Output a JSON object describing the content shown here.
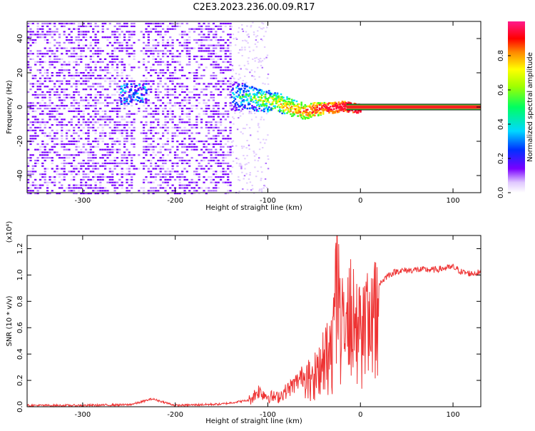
{
  "title": "C2E3.2023.236.00.09.R17",
  "chart_data": [
    {
      "type": "heatmap",
      "xlabel": "Height of straight line (km)",
      "ylabel": "Frequency (Hz)",
      "xlim": [
        -360,
        130
      ],
      "ylim": [
        -50,
        50
      ],
      "xticks": [
        -300,
        -200,
        -100,
        0,
        100
      ],
      "yticks": [
        -40,
        -20,
        0,
        20,
        40
      ],
      "colorbar": {
        "label": "Normalized spectral amplitude",
        "range": [
          0,
          1
        ],
        "ticks": [
          "0.0",
          "0.2",
          "0.4",
          "0.6",
          "0.8"
        ]
      },
      "signal_track": {
        "height_km": [
          -140,
          -120,
          -100,
          -90,
          -80,
          -70,
          -60,
          -50,
          -40,
          -30,
          -20,
          -10,
          0,
          130
        ],
        "frequency_hz": [
          7,
          6,
          4,
          3,
          1,
          -1,
          -2,
          -1,
          0,
          0,
          1,
          0,
          0,
          0
        ]
      }
    },
    {
      "type": "line",
      "xlabel": "Height of straight line (km)",
      "ylabel": "SNR (10 * v/v)",
      "multiplier": "(x10⁴)",
      "xlim": [
        -360,
        130
      ],
      "ylim": [
        0,
        1.3
      ],
      "xticks": [
        -300,
        -200,
        -100,
        0,
        100
      ],
      "yticks": [
        "0.0",
        "0.2",
        "0.4",
        "0.6",
        "0.8",
        "1.0",
        "1.2"
      ],
      "series": [
        {
          "color": "#ee3333",
          "x": [
            -360,
            -300,
            -250,
            -240,
            -225,
            -200,
            -150,
            -120,
            -110,
            -100,
            -90,
            -80,
            -70,
            -60,
            -50,
            -40,
            -30,
            -25,
            -20,
            -15,
            -10,
            -5,
            0,
            10,
            20,
            30,
            40,
            60,
            80,
            90,
            100,
            110,
            120,
            130
          ],
          "y": [
            0.01,
            0.01,
            0.015,
            0.03,
            0.06,
            0.01,
            0.02,
            0.05,
            0.12,
            0.08,
            0.07,
            0.12,
            0.18,
            0.25,
            0.3,
            0.45,
            0.6,
            1.28,
            0.75,
            0.9,
            0.95,
            0.8,
            0.7,
            0.82,
            0.93,
            1.0,
            1.03,
            1.04,
            1.04,
            1.05,
            1.06,
            1.02,
            1.01,
            1.02
          ]
        }
      ]
    }
  ]
}
